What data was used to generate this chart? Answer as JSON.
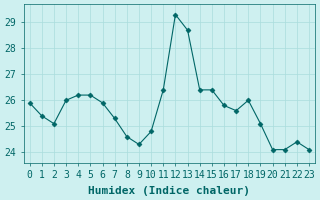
{
  "x": [
    0,
    1,
    2,
    3,
    4,
    5,
    6,
    7,
    8,
    9,
    10,
    11,
    12,
    13,
    14,
    15,
    16,
    17,
    18,
    19,
    20,
    21,
    22,
    23
  ],
  "y": [
    25.9,
    25.4,
    25.1,
    26.0,
    26.2,
    26.2,
    25.9,
    25.3,
    24.6,
    24.3,
    24.8,
    26.4,
    29.3,
    28.7,
    26.4,
    26.4,
    25.8,
    25.6,
    26.0,
    25.1,
    24.1,
    24.1,
    24.4,
    24.1
  ],
  "line_color": "#006666",
  "marker": "D",
  "marker_size": 2.5,
  "bg_color": "#cef0f0",
  "grid_color": "#aadddd",
  "xlabel": "Humidex (Indice chaleur)",
  "xlabel_fontsize": 8,
  "tick_fontsize": 7,
  "ylim": [
    23.6,
    29.7
  ],
  "yticks": [
    24,
    25,
    26,
    27,
    28,
    29
  ],
  "xticks": [
    0,
    1,
    2,
    3,
    4,
    5,
    6,
    7,
    8,
    9,
    10,
    11,
    12,
    13,
    14,
    15,
    16,
    17,
    18,
    19,
    20,
    21,
    22,
    23
  ]
}
